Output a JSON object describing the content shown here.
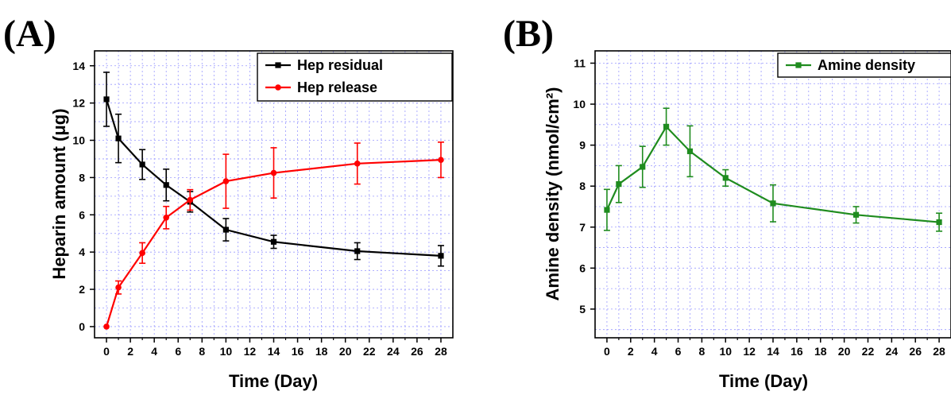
{
  "chart_data": [
    {
      "type": "line",
      "panel_label": "(A)",
      "xlabel": "Time (Day)",
      "ylabel": "Heparin amount (μg)",
      "xlim": [
        -1,
        29
      ],
      "ylim": [
        -0.6,
        14.8
      ],
      "x_ticks": [
        0,
        2,
        4,
        6,
        8,
        10,
        12,
        14,
        16,
        18,
        20,
        22,
        24,
        26,
        28
      ],
      "y_ticks": [
        0,
        2,
        4,
        6,
        8,
        10,
        12,
        14
      ],
      "grid": true,
      "legend_position": "top-right",
      "series": [
        {
          "name": "Hep residual",
          "color": "#000000",
          "marker": "square",
          "x": [
            0,
            1,
            3,
            5,
            7,
            10,
            14,
            21,
            28
          ],
          "y": [
            12.2,
            10.1,
            8.7,
            7.6,
            6.7,
            5.2,
            4.55,
            4.05,
            3.8
          ],
          "error": [
            1.45,
            1.3,
            0.8,
            0.85,
            0.55,
            0.6,
            0.35,
            0.45,
            0.55
          ]
        },
        {
          "name": "Hep release",
          "color": "#ff0000",
          "marker": "circle",
          "x": [
            0,
            1,
            3,
            5,
            7,
            10,
            14,
            21,
            28
          ],
          "y": [
            0.0,
            2.1,
            3.95,
            5.85,
            6.8,
            7.8,
            8.25,
            8.75,
            8.95
          ],
          "error": [
            0.0,
            0.35,
            0.55,
            0.6,
            0.55,
            1.45,
            1.35,
            1.1,
            0.95
          ]
        }
      ]
    },
    {
      "type": "line",
      "panel_label": "(B)",
      "xlabel": "Time (Day)",
      "ylabel": "Amine density (nmol/cm²)",
      "xlim": [
        -1,
        29
      ],
      "ylim": [
        4.3,
        11.3
      ],
      "x_ticks": [
        0,
        2,
        4,
        6,
        8,
        10,
        12,
        14,
        16,
        18,
        20,
        22,
        24,
        26,
        28
      ],
      "y_ticks": [
        5,
        6,
        7,
        8,
        9,
        10,
        11
      ],
      "grid": true,
      "legend_position": "top-right",
      "series": [
        {
          "name": "Amine density",
          "color": "#1f8c1f",
          "marker": "square",
          "x": [
            0,
            1,
            3,
            5,
            7,
            10,
            14,
            21,
            28
          ],
          "y": [
            7.42,
            8.05,
            8.47,
            9.45,
            8.85,
            8.2,
            7.58,
            7.3,
            7.12
          ],
          "error": [
            0.5,
            0.45,
            0.5,
            0.45,
            0.62,
            0.2,
            0.45,
            0.2,
            0.22
          ]
        }
      ]
    }
  ]
}
